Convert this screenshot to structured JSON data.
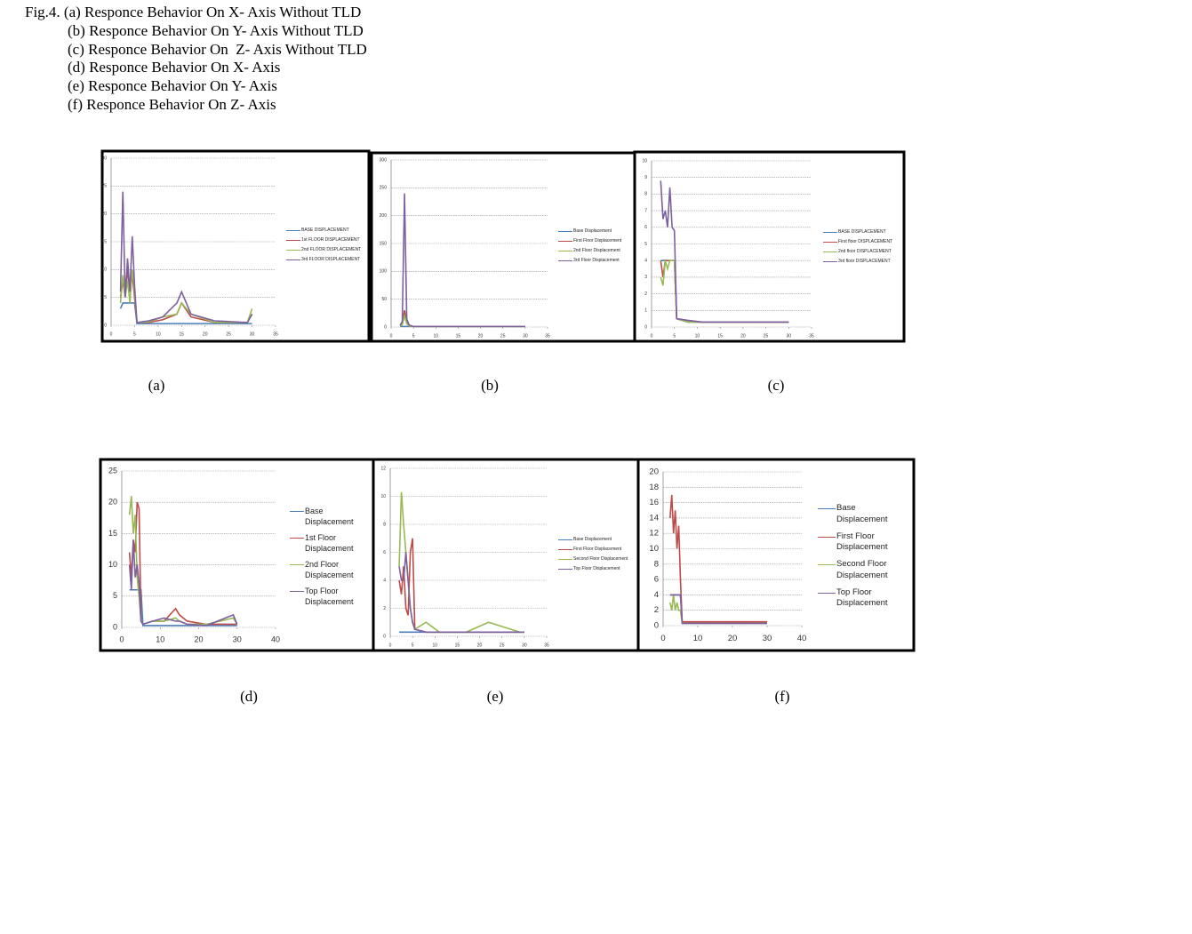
{
  "caption_lines": [
    "Fig.4. (a) Responce Behavior On X- Axis Without TLD",
    "(b) Responce Behavior On Y- Axis Without TLD",
    "(c) Responce Behavior On  Z- Axis Without TLD",
    "(d) Responce Behavior On X- Axis",
    "(e) Responce Behavior On Y- Axis",
    "(f) Responce Behavior On Z- Axis"
  ],
  "chart_data": [
    {
      "type": "line",
      "caption": "(a)",
      "grid": true,
      "x": [
        2,
        2.5,
        3,
        3.5,
        4,
        4.5,
        5,
        5.5,
        8,
        11,
        14,
        15,
        17,
        22,
        29,
        30
      ],
      "xlim": [
        0,
        35
      ],
      "xticks": [
        0,
        5,
        10,
        15,
        20,
        25,
        30,
        35
      ],
      "ylim": [
        0,
        30
      ],
      "yticks": [
        0,
        5,
        10,
        15,
        20,
        25,
        30
      ],
      "series": [
        {
          "name": "BASE DISPLACEMENT",
          "color": "#4a7ebb",
          "values": [
            3,
            4,
            4,
            4,
            4,
            4,
            4,
            0.3,
            0.3,
            0.3,
            0.3,
            0.3,
            0.3,
            0.3,
            0.3,
            0.3
          ]
        },
        {
          "name": "1st FLOOR DISPLACEMENT",
          "color": "#be4b48",
          "values": [
            5,
            8,
            5,
            10,
            6,
            9,
            5,
            0.5,
            0.5,
            1,
            2,
            4,
            1.5,
            0.5,
            0.5,
            2
          ]
        },
        {
          "name": "2nd FLOOR DISPLACEMENT",
          "color": "#98b954",
          "values": [
            4,
            9,
            5,
            8,
            4,
            10,
            6,
            0.5,
            0.6,
            1.5,
            2,
            4,
            2,
            0.5,
            0.5,
            3
          ]
        },
        {
          "name": "3rd FLOOR DISPLACEMENT",
          "color": "#7d60a0",
          "values": [
            6,
            24,
            5,
            12,
            6,
            16,
            7,
            0.5,
            0.8,
            1.5,
            4,
            6,
            2,
            0.8,
            0.5,
            2
          ]
        }
      ]
    },
    {
      "type": "line",
      "caption": "(b)",
      "grid": true,
      "x": [
        2,
        2.5,
        3,
        3.5,
        4,
        4.5,
        5,
        5.5,
        8,
        11,
        14,
        15,
        17,
        22,
        29,
        30
      ],
      "xlim": [
        0,
        35
      ],
      "xticks": [
        0,
        5,
        10,
        15,
        20,
        25,
        30,
        35
      ],
      "ylim": [
        0,
        300
      ],
      "yticks": [
        0,
        50,
        100,
        150,
        200,
        250,
        300
      ],
      "series": [
        {
          "name": "Base Displacement",
          "color": "#4a7ebb",
          "values": [
            1,
            1,
            1,
            1,
            1,
            1,
            1,
            1,
            1,
            1,
            1,
            1,
            1,
            1,
            1,
            1
          ]
        },
        {
          "name": "First Floor  Displacement",
          "color": "#be4b48",
          "values": [
            2,
            5,
            30,
            8,
            3,
            2,
            1,
            1,
            1,
            1,
            1,
            1,
            1,
            1,
            1,
            1
          ]
        },
        {
          "name": "2nd Floor  Displacement",
          "color": "#98b954",
          "values": [
            2,
            4,
            20,
            6,
            2,
            1,
            1,
            1,
            1,
            1,
            1,
            1,
            1,
            1,
            1,
            1
          ]
        },
        {
          "name": "3rd Floor  Displacement",
          "color": "#7d60a0",
          "values": [
            3,
            10,
            240,
            15,
            4,
            2,
            1,
            1,
            1,
            1,
            1,
            1,
            1,
            1,
            1,
            1
          ]
        }
      ]
    },
    {
      "type": "line",
      "caption": "(c)",
      "grid": true,
      "x": [
        2,
        2.5,
        3,
        3.5,
        4,
        4.5,
        5,
        5.5,
        8,
        11,
        14,
        15,
        17,
        22,
        29,
        30
      ],
      "xlim": [
        0,
        35
      ],
      "xticks": [
        0,
        5,
        10,
        15,
        20,
        25,
        30,
        35
      ],
      "ylim": [
        0,
        10
      ],
      "yticks": [
        0,
        1,
        2,
        3,
        4,
        5,
        6,
        7,
        8,
        9,
        10
      ],
      "series": [
        {
          "name": "BASE DISPLACEMENT",
          "color": "#4a7ebb",
          "values": [
            4,
            4,
            4,
            4,
            4,
            4,
            4,
            0.5,
            0.3,
            0.3,
            0.3,
            0.3,
            0.3,
            0.3,
            0.3,
            0.3
          ]
        },
        {
          "name": "First floor DISPLACEMENT",
          "color": "#be4b48",
          "values": [
            4,
            3,
            4,
            4,
            4,
            4,
            4,
            0.5,
            0.4,
            0.3,
            0.3,
            0.3,
            0.3,
            0.3,
            0.3,
            0.3
          ]
        },
        {
          "name": "2nd floor DISPLACEMENT",
          "color": "#98b954",
          "values": [
            3,
            2.5,
            4,
            3.5,
            4,
            4,
            4,
            0.5,
            0.3,
            0.3,
            0.3,
            0.3,
            0.3,
            0.3,
            0.3,
            0.3
          ]
        },
        {
          "name": "3rd floor DISPLACEMENT",
          "color": "#7d60a0",
          "values": [
            8.8,
            6.5,
            7,
            6,
            8.4,
            6,
            5.8,
            0.5,
            0.4,
            0.3,
            0.3,
            0.3,
            0.3,
            0.3,
            0.3,
            0.3
          ]
        }
      ]
    },
    {
      "type": "line",
      "caption": "(d)",
      "grid": true,
      "x": [
        2,
        2.5,
        3,
        3.5,
        4,
        4.5,
        5,
        5.5,
        8,
        11,
        14,
        15,
        17,
        22,
        29,
        30
      ],
      "xlim": [
        0,
        40
      ],
      "xticks": [
        0,
        10,
        20,
        30,
        40
      ],
      "ylim": [
        0,
        25
      ],
      "yticks": [
        0,
        5,
        10,
        15,
        20,
        25
      ],
      "series": [
        {
          "name": "Base Displacement",
          "color": "#4a7ebb",
          "values": [
            6,
            6,
            6,
            6,
            6,
            6,
            6,
            0.3,
            0.3,
            0.3,
            0.3,
            0.3,
            0.3,
            0.3,
            0.3,
            0.3
          ]
        },
        {
          "name": "1st Floor Displacement",
          "color": "#be4b48",
          "values": [
            12,
            8,
            14,
            12,
            20,
            19,
            1,
            0.5,
            1,
            1,
            3,
            2,
            1,
            0.5,
            0.5,
            0.5
          ]
        },
        {
          "name": "2nd Floor Displacement",
          "color": "#98b954",
          "values": [
            18,
            21,
            15,
            18,
            8,
            5,
            1,
            0.5,
            1,
            1,
            1.5,
            1,
            0.5,
            0.5,
            1.5,
            0.5
          ]
        },
        {
          "name": "Top Floor Displacement",
          "color": "#7d60a0",
          "values": [
            10,
            6,
            14,
            8,
            10,
            7,
            1,
            0.5,
            1,
            1.5,
            1,
            1,
            0.5,
            0.3,
            2,
            0.5
          ]
        }
      ]
    },
    {
      "type": "line",
      "caption": "(e)",
      "grid": true,
      "x": [
        2,
        2.5,
        3,
        3.5,
        4,
        4.5,
        5,
        5.5,
        8,
        11,
        14,
        15,
        17,
        22,
        29,
        30
      ],
      "xlim": [
        0,
        35
      ],
      "xticks": [
        0,
        5,
        10,
        15,
        20,
        25,
        30,
        35
      ],
      "ylim": [
        0,
        12
      ],
      "yticks": [
        0,
        2,
        4,
        6,
        8,
        10,
        12
      ],
      "series": [
        {
          "name": "Base Displacement",
          "color": "#4a7ebb",
          "values": [
            0.3,
            0.3,
            0.3,
            0.3,
            0.3,
            0.3,
            0.3,
            0.3,
            0.3,
            0.3,
            0.3,
            0.3,
            0.3,
            0.3,
            0.3,
            0.3
          ]
        },
        {
          "name": "First Floor Displacement",
          "color": "#be4b48",
          "values": [
            4,
            3,
            5,
            2,
            1.5,
            6,
            7,
            0.5,
            0.3,
            0.3,
            0.3,
            0.3,
            0.3,
            0.3,
            0.3,
            0.3
          ]
        },
        {
          "name": "Second Floor Displacement",
          "color": "#98b954",
          "values": [
            5,
            10.3,
            8,
            6,
            4,
            2,
            1,
            0.5,
            1,
            0.3,
            0.3,
            0.3,
            0.3,
            1,
            0.3,
            0.3
          ]
        },
        {
          "name": "Top Floor Displacement",
          "color": "#7d60a0",
          "values": [
            5,
            4,
            4,
            6,
            4,
            2,
            1,
            0.5,
            0.3,
            0.3,
            0.3,
            0.3,
            0.3,
            0.3,
            0.3,
            0.3
          ]
        }
      ]
    },
    {
      "type": "line",
      "caption": "(f)",
      "grid": true,
      "x": [
        2,
        2.5,
        3,
        3.5,
        4,
        4.5,
        5,
        5.5,
        8,
        11,
        14,
        15,
        17,
        22,
        29,
        30
      ],
      "xlim": [
        0,
        40
      ],
      "xticks": [
        0,
        10,
        20,
        30,
        40
      ],
      "ylim": [
        0,
        20
      ],
      "yticks": [
        0,
        2,
        4,
        6,
        8,
        10,
        12,
        14,
        16,
        18,
        20
      ],
      "series": [
        {
          "name": "Base Displacement",
          "color": "#4a7ebb",
          "values": [
            4,
            4,
            4,
            4,
            4,
            4,
            4,
            0.3,
            0.3,
            0.3,
            0.3,
            0.3,
            0.3,
            0.3,
            0.3,
            0.3
          ]
        },
        {
          "name": "First Floor Displacement",
          "color": "#be4b48",
          "values": [
            14,
            17,
            12,
            15,
            10,
            13,
            6,
            0.5,
            0.5,
            0.5,
            0.5,
            0.5,
            0.5,
            0.5,
            0.5,
            0.5
          ]
        },
        {
          "name": "Second Floor Displacement",
          "color": "#98b954",
          "values": [
            3,
            2,
            4,
            2,
            3,
            2,
            2,
            0.3,
            0.3,
            0.3,
            0.3,
            0.3,
            0.3,
            0.3,
            0.3,
            0.3
          ]
        },
        {
          "name": "Top Floor Displacement",
          "color": "#7d60a0",
          "values": [
            4,
            4,
            4,
            4,
            4,
            4,
            4,
            0.3,
            0.3,
            0.3,
            0.3,
            0.3,
            0.3,
            0.3,
            0.3,
            0.3
          ]
        }
      ]
    }
  ]
}
